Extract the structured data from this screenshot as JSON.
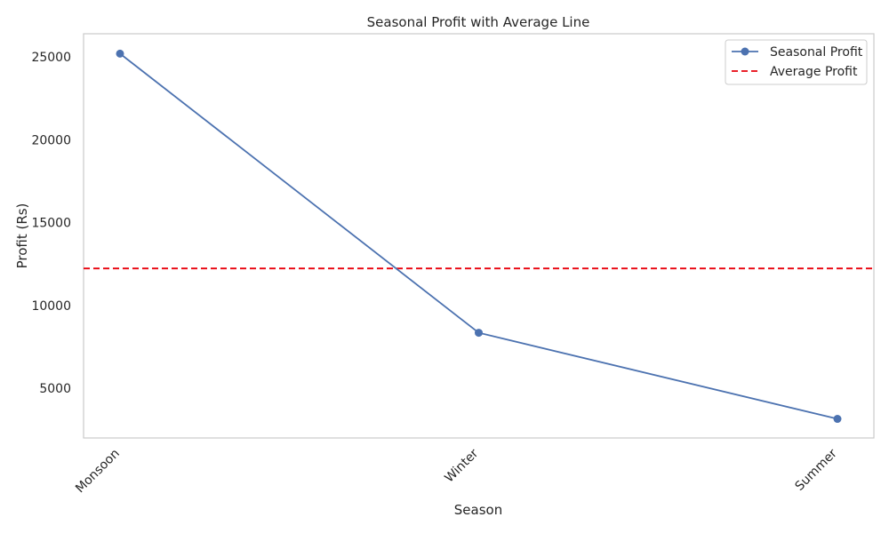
{
  "chart_data": {
    "type": "line",
    "title": "Seasonal Profit with Average Line",
    "xlabel": "Season",
    "ylabel": "Profit (Rs)",
    "categories": [
      "Monsoon",
      "Winter",
      "Summer"
    ],
    "series": [
      {
        "name": "Seasonal Profit",
        "values": [
          25200,
          8350,
          3150
        ],
        "color": "#4c72b0",
        "marker": "circle"
      }
    ],
    "reference_lines": [
      {
        "name": "Average Profit",
        "value": 12233,
        "color": "#e8000b",
        "style": "dashed"
      }
    ],
    "yticks": [
      5000,
      10000,
      15000,
      20000,
      25000
    ],
    "ylim": [
      2000,
      26400
    ],
    "grid": false,
    "legend": {
      "placement": "top-right",
      "entries": [
        "Seasonal Profit",
        "Average Profit"
      ]
    }
  }
}
